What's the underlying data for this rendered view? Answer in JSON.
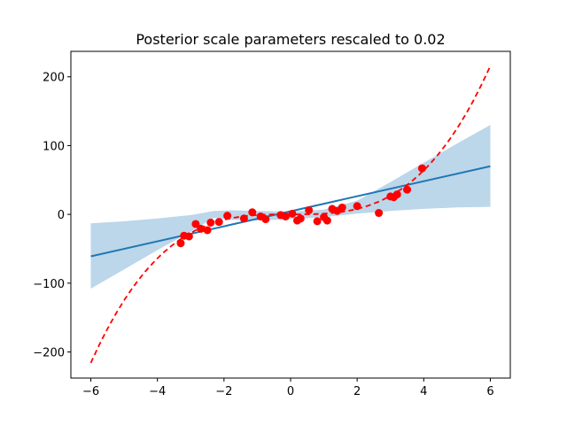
{
  "chart_data": {
    "type": "scatter",
    "title": "Posterior scale parameters rescaled to 0.02",
    "xlabel": "",
    "ylabel": "",
    "xlim": [
      -6.6,
      6.6
    ],
    "ylim": [
      -238,
      237
    ],
    "xticks": [
      -6,
      -4,
      -2,
      0,
      2,
      4,
      6
    ],
    "yticks": [
      -200,
      -100,
      0,
      100,
      200
    ],
    "xtick_labels": [
      "−6",
      "−4",
      "−2",
      "0",
      "2",
      "4",
      "6"
    ],
    "ytick_labels": [
      "−200",
      "−100",
      "0",
      "100",
      "200"
    ],
    "grid": false,
    "colors": {
      "band": "#bcd6ea",
      "mean_line": "#1f77b4",
      "true_curve": "#ff0000",
      "points": "#ff0000"
    },
    "band": {
      "x": [
        -6,
        -5,
        -4,
        -3,
        -2.3,
        -1.8,
        -1,
        0,
        1,
        2,
        3,
        4,
        5,
        6
      ],
      "lower": [
        -108,
        -80,
        -52,
        -25,
        -5,
        -8,
        -9,
        -7,
        -4,
        1,
        5,
        8,
        10,
        11
      ],
      "upper": [
        -13,
        -10,
        -6,
        -1,
        5,
        6,
        5,
        4,
        7,
        20,
        47,
        75,
        103,
        130
      ]
    },
    "mean_line": {
      "x": [
        -6,
        6
      ],
      "y": [
        -61,
        70
      ]
    },
    "true_curve": {
      "function": "x^3",
      "x_range": [
        -6,
        6
      ]
    },
    "points": {
      "x": [
        -3.3,
        -3.2,
        -3.05,
        -2.85,
        -2.7,
        -2.5,
        -2.4,
        -2.15,
        -1.9,
        -1.4,
        -1.15,
        -0.9,
        -0.75,
        -0.3,
        -0.15,
        0.05,
        0.2,
        0.3,
        0.55,
        0.8,
        1.0,
        1.1,
        1.25,
        1.4,
        1.55,
        2.0,
        2.65,
        3.0,
        3.1,
        3.2,
        3.5,
        3.95
      ],
      "y": [
        -42,
        -31,
        -32,
        -14,
        -21,
        -23,
        -12,
        -11,
        -2,
        -6,
        3,
        -3,
        -7,
        -1,
        -3,
        1,
        -9,
        -6,
        6,
        -10,
        -4,
        -9,
        8,
        5,
        10,
        12,
        2,
        26,
        25,
        29,
        36,
        67
      ]
    }
  }
}
